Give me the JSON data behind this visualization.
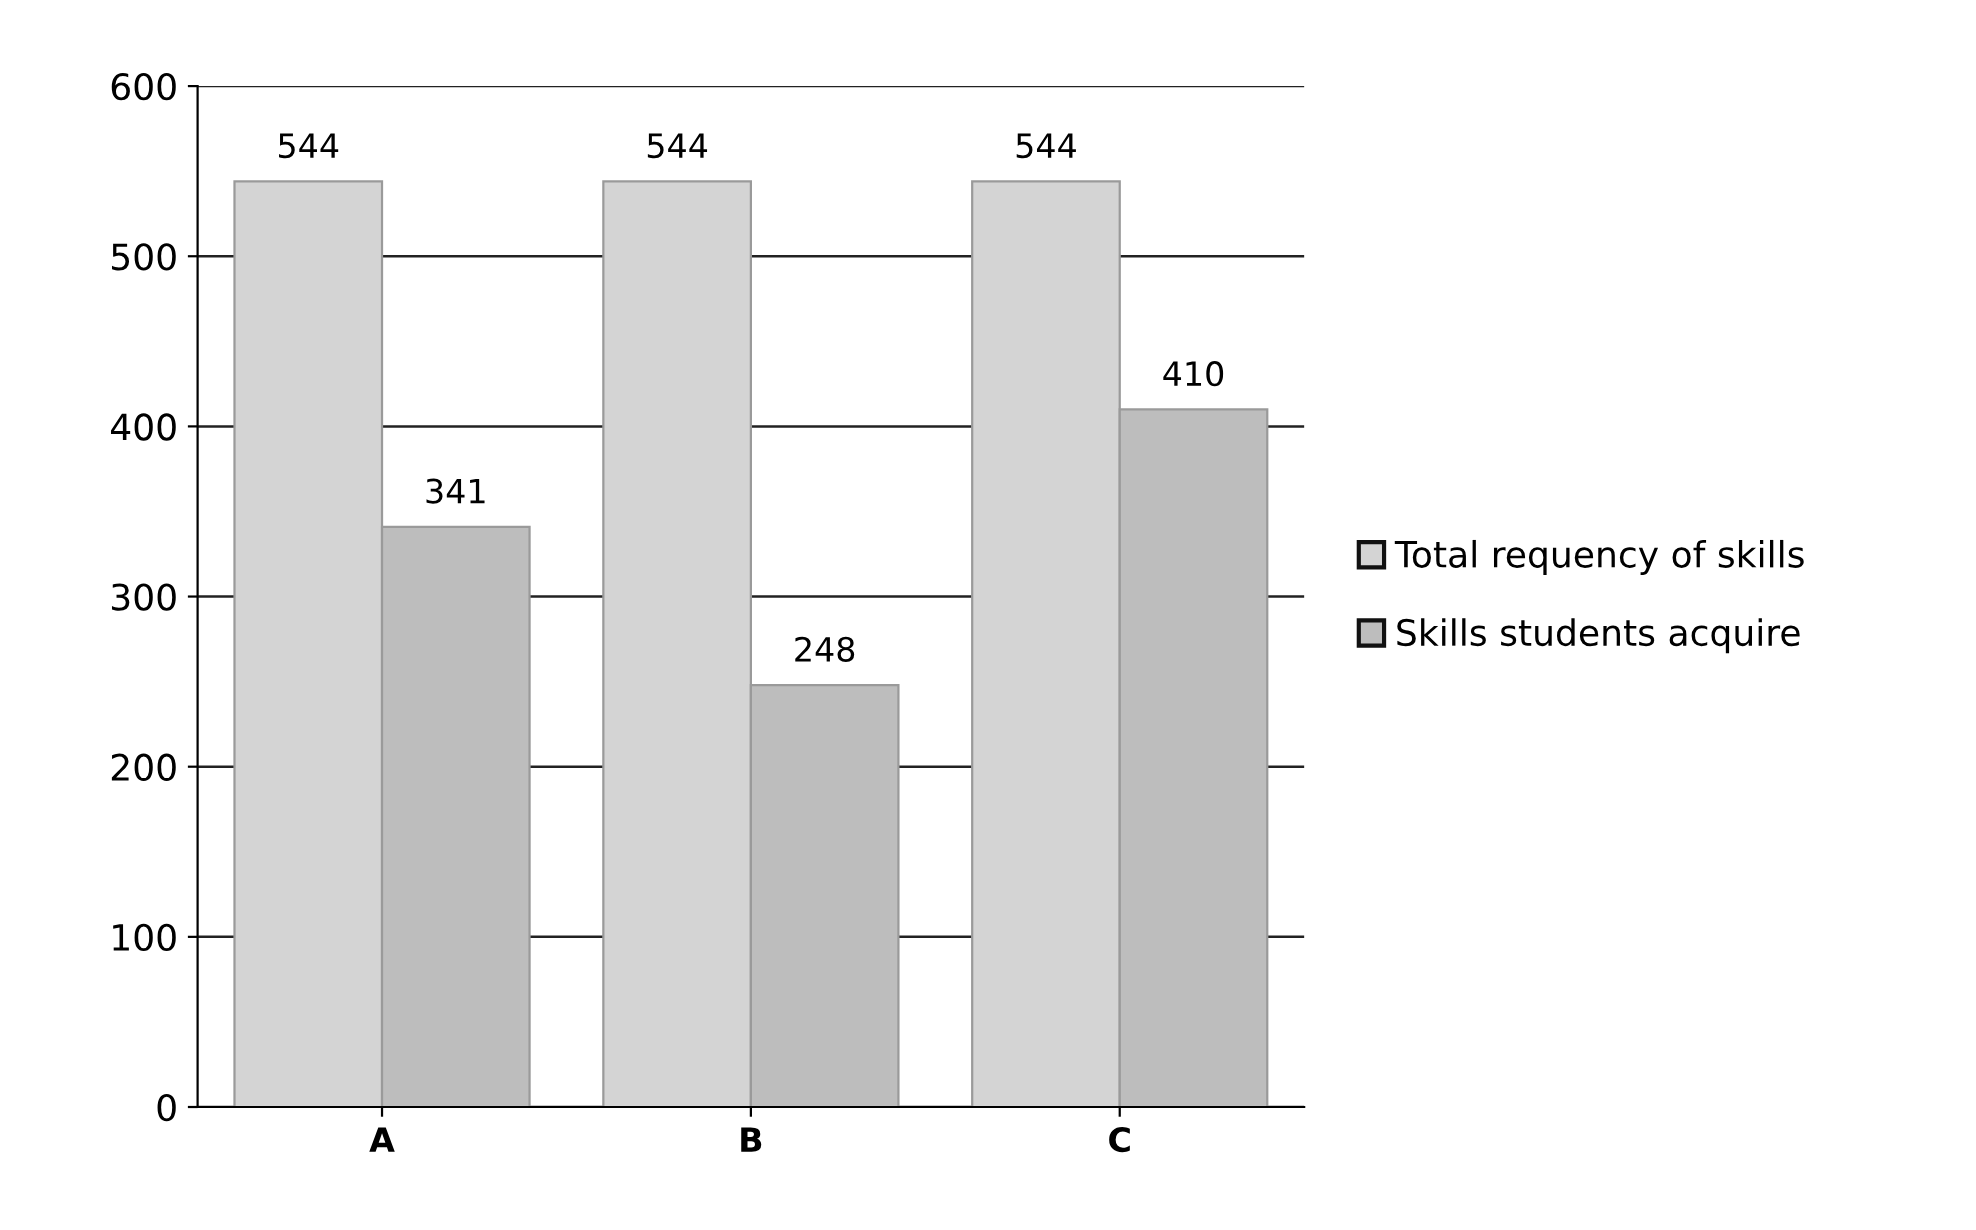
{
  "chart_data": {
    "type": "bar",
    "categories": [
      "A",
      "B",
      "C"
    ],
    "series": [
      {
        "name": "Total requency of skills",
        "color": "#d4d4d4",
        "values": [
          544,
          544,
          544
        ]
      },
      {
        "name": "Skills students acquire",
        "color": "#bdbdbd",
        "values": [
          341,
          248,
          410
        ]
      }
    ],
    "ylim": [
      0,
      600
    ],
    "yticks": [
      0,
      100,
      200,
      300,
      400,
      500,
      600
    ],
    "grid": "y",
    "legend": "right",
    "data_labels": true
  }
}
